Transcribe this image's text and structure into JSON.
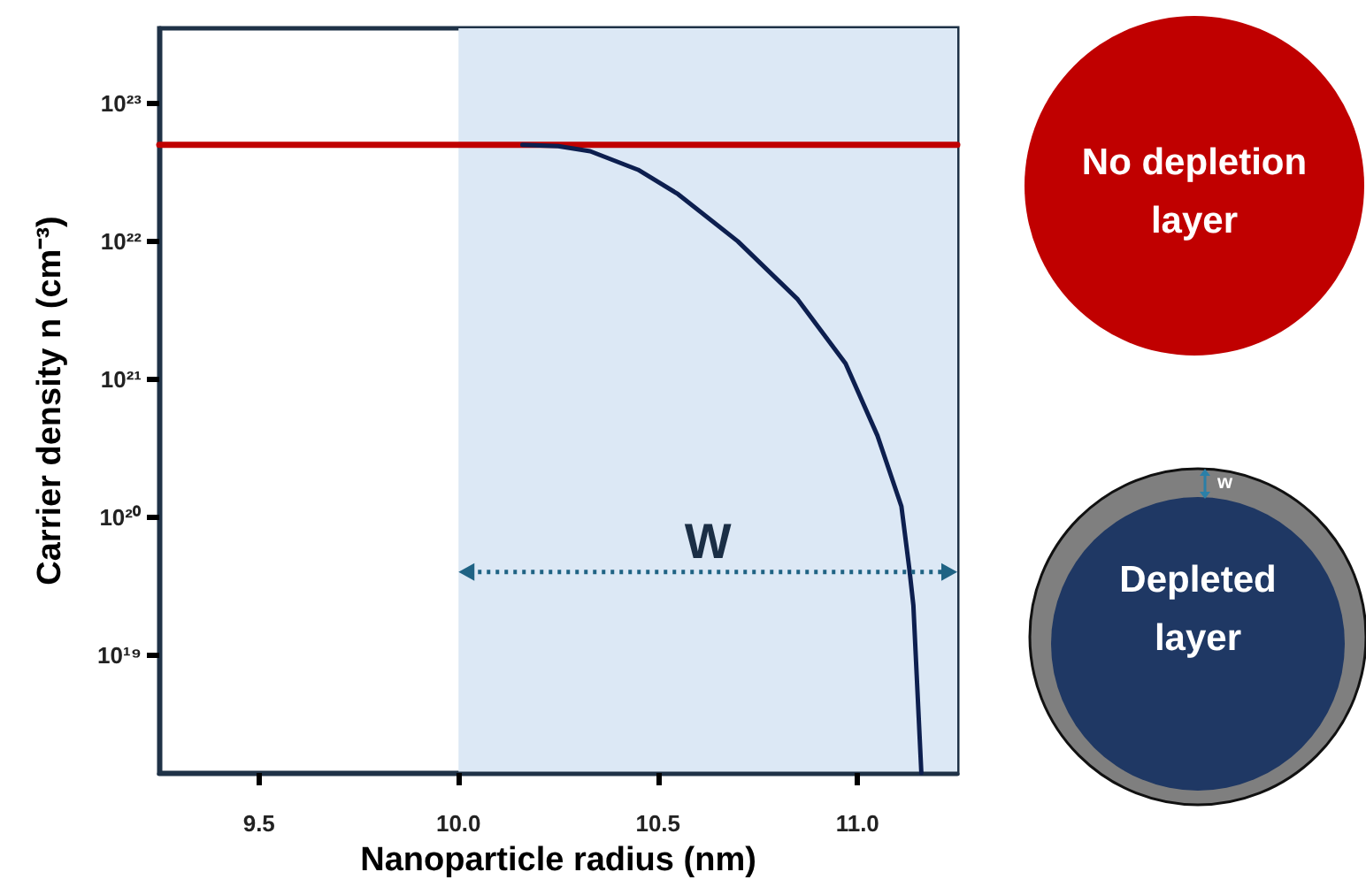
{
  "chart_data": {
    "type": "line",
    "xlabel": "Nanoparticle radius (nm)",
    "ylabel": "Carrier density n (cm⁻³)",
    "series": [
      {
        "color": "#c00000",
        "x": [
          9.25,
          11.25
        ],
        "values": [
          5e+22,
          5e+22
        ]
      },
      {
        "color": "#0d1f4f",
        "x": [
          10.16,
          10.25,
          10.33,
          10.45,
          10.55,
          10.7,
          10.85,
          10.97,
          11.05,
          11.11,
          11.13,
          11.14,
          11.16
        ],
        "values": [
          5e+22,
          4.9e+22,
          4.5e+22,
          3.3e+22,
          2.2e+22,
          1e+22,
          3.8e+21,
          1.3e+21,
          3.9e+20,
          1.2e+20,
          4.2e+19,
          2.3e+19,
          1.4e+18
        ]
      }
    ],
    "log": "y",
    "xlim": [
      9.25,
      11.25
    ],
    "ylim": [
      1.4e+18,
      3.5e+23
    ],
    "xticks": [
      9.5,
      {
        "value": 10,
        "label": "10.0"
      },
      10.5,
      {
        "value": 11,
        "label": "11.0"
      }
    ],
    "yticks": [
      {
        "value": 1e+19,
        "label": "10¹⁹"
      },
      {
        "value": 1e+20,
        "label": "10²⁰"
      },
      {
        "value": 1e+21,
        "label": "10²¹"
      },
      {
        "value": 1e+22,
        "label": "10²²"
      },
      {
        "value": 1e+23,
        "label": "10²³"
      }
    ],
    "bands": [
      {
        "axis": "x",
        "from": 10.0,
        "to": 11.25,
        "color": "#dce8f5"
      }
    ],
    "annotations": [
      "W",
      "No depletion layer",
      "Depleted layer",
      "w"
    ],
    "grid": false,
    "marker": "none",
    "line_style": "solid"
  }
}
